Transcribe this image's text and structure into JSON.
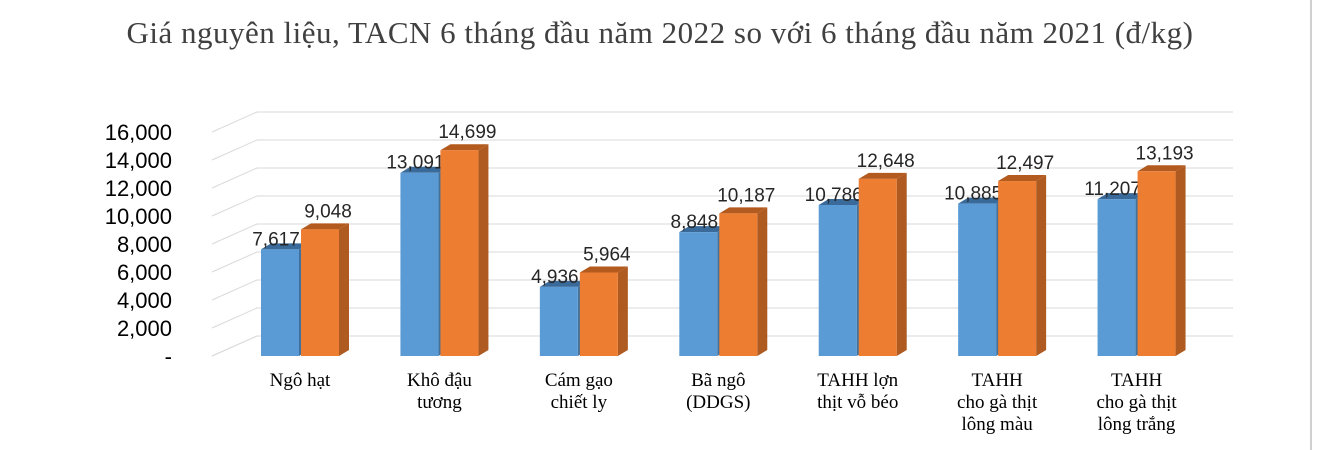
{
  "chart_data": {
    "type": "bar",
    "title": "Giá nguyên liệu, TACN 6 tháng đầu năm 2022 so với 6 tháng đầu năm 2021 (đ/kg)",
    "categories": [
      [
        "Ngô hạt"
      ],
      [
        "Khô đậu",
        "tương"
      ],
      [
        "Cám gạo",
        "chiết ly"
      ],
      [
        "Bã ngô",
        "(DDGS)"
      ],
      [
        "TAHH lợn",
        "thịt vỗ béo"
      ],
      [
        "TAHH",
        "cho gà thịt",
        "lông màu"
      ],
      [
        "TAHH",
        "cho gà thịt",
        "lông trắng"
      ]
    ],
    "series": [
      {
        "color": "#5b9bd5",
        "side": "#41719c",
        "top": "#3a6a99",
        "values": [
          7617,
          13091,
          4936,
          8848,
          10786,
          10885,
          11207
        ]
      },
      {
        "color": "#ed7d31",
        "side": "#ae5a21",
        "top": "#b35a1f",
        "values": [
          9048,
          14699,
          5964,
          10187,
          12648,
          12497,
          13193
        ]
      }
    ],
    "data_labels": [
      [
        "7,617",
        "13,091",
        "4,936",
        "8,848",
        "10,786",
        "10,885",
        "11,207"
      ],
      [
        "9,048",
        "14,699",
        "5,964",
        "10,187",
        "12,648",
        "12,497",
        "13,193"
      ]
    ],
    "yticks": [
      "-",
      "2,000",
      "4,000",
      "6,000",
      "8,000",
      "10,000",
      "12,000",
      "14,000",
      "16,000"
    ],
    "ylim": [
      0,
      16000
    ],
    "grid": true
  }
}
